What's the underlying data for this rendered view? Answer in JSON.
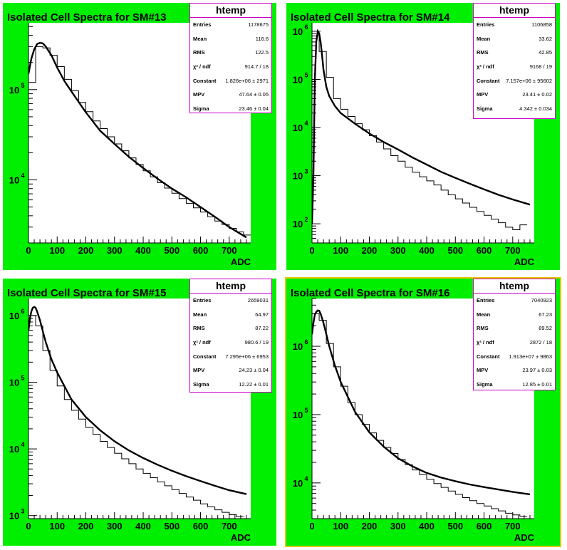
{
  "panels": [
    {
      "title": "Isolated Cell Spectra for SM#13",
      "stats": {
        "name": "htemp",
        "rows": [
          {
            "label": "Entries",
            "value": "1178675"
          },
          {
            "label": "Mean",
            "value": "116.6"
          },
          {
            "label": "RMS",
            "value": "122.5"
          },
          {
            "label": "χ² / ndf",
            "value": "914.7 / 18"
          },
          {
            "label": "Constant",
            "value": "1.826e+06 ± 2971"
          },
          {
            "label": "MPV",
            "value": "47.64 ± 0.05"
          },
          {
            "label": "Sigma",
            "value": "23.46 ± 0.04"
          }
        ]
      },
      "frame_color": "#00ee00",
      "border_color": ""
    },
    {
      "title": "Isolated Cell Spectra for SM#14",
      "stats": {
        "name": "htemp",
        "rows": [
          {
            "label": "Entries",
            "value": "1106858"
          },
          {
            "label": "Mean",
            "value": "33.62"
          },
          {
            "label": "RMS",
            "value": "42.85"
          },
          {
            "label": "χ² / ndf",
            "value": "9168 / 19"
          },
          {
            "label": "Constant",
            "value": "7.157e+06 ± 95602"
          },
          {
            "label": "MPV",
            "value": "23.41 ± 0.02"
          },
          {
            "label": "Sigma",
            "value": "4.342 ± 0.034"
          }
        ]
      },
      "frame_color": "#00ee00",
      "border_color": ""
    },
    {
      "title": "Isolated Cell Spectra for SM#15",
      "stats": {
        "name": "htemp",
        "rows": [
          {
            "label": "Entries",
            "value": "2659031"
          },
          {
            "label": "Mean",
            "value": "64.97"
          },
          {
            "label": "RMS",
            "value": "87.22"
          },
          {
            "label": "χ² / ndf",
            "value": "980.6 / 19"
          },
          {
            "label": "Constant",
            "value": "7.295e+06 ± 6953"
          },
          {
            "label": "MPV",
            "value": "24.23 ± 0.04"
          },
          {
            "label": "Sigma",
            "value": "12.22 ± 0.01"
          }
        ]
      },
      "frame_color": "#00ee00",
      "border_color": ""
    },
    {
      "title": "Isolated Cell Spectra for SM#16",
      "stats": {
        "name": "htemp",
        "rows": [
          {
            "label": "Entries",
            "value": "7040923"
          },
          {
            "label": "Mean",
            "value": "67.23"
          },
          {
            "label": "RMS",
            "value": "89.52"
          },
          {
            "label": "χ² / ndf",
            "value": "2872 / 18"
          },
          {
            "label": "Constant",
            "value": "1.913e+07 ± 9863"
          },
          {
            "label": "MPV",
            "value": "23.97 ± 0.03"
          },
          {
            "label": "Sigma",
            "value": "12.85 ± 0.01"
          }
        ]
      },
      "frame_color": "#00ee00",
      "border_color": "#e8c400"
    }
  ],
  "chart_data": [
    {
      "type": "bar",
      "title": "Isolated Cell Spectra for SM#13",
      "xlabel": "ADC",
      "ylabel": "",
      "xlim": [
        0,
        775
      ],
      "ylim": [
        2000,
        550000
      ],
      "yscale": "log",
      "xticks": [
        0,
        100,
        200,
        300,
        400,
        500,
        600,
        700
      ],
      "yticks": [
        {
          "base": "10",
          "exp": "4",
          "value": 10000
        },
        {
          "base": "10",
          "exp": "5",
          "value": 100000
        }
      ],
      "bin_width": 25,
      "histogram": [
        120000,
        300000,
        290000,
        240000,
        180000,
        130000,
        97000,
        72000,
        57000,
        45000,
        37000,
        30000,
        25000,
        21000,
        17500,
        14800,
        12600,
        10800,
        9300,
        8100,
        7100,
        6200,
        5500,
        4900,
        4400,
        3900,
        3500,
        3200,
        2900,
        2650,
        2450
      ],
      "fit": {
        "x": [
          0,
          10,
          20,
          30,
          40,
          50,
          60,
          80,
          100,
          125,
          150,
          200,
          250,
          300,
          350,
          400,
          450,
          500,
          550,
          600,
          650,
          700,
          760
        ],
        "y": [
          150000,
          220000,
          280000,
          320000,
          330000,
          325000,
          300000,
          240000,
          175000,
          125000,
          95000,
          56000,
          35000,
          25000,
          18000,
          13500,
          10300,
          8000,
          6400,
          5000,
          3900,
          3000,
          2300
        ]
      }
    },
    {
      "type": "bar",
      "title": "Isolated Cell Spectra for SM#14",
      "xlabel": "ADC",
      "ylabel": "",
      "xlim": [
        0,
        775
      ],
      "ylim": [
        40,
        1500000
      ],
      "yscale": "log",
      "xticks": [
        0,
        100,
        200,
        300,
        400,
        500,
        600,
        700
      ],
      "yticks": [
        {
          "base": "10",
          "exp": "2",
          "value": 100
        },
        {
          "base": "10",
          "exp": "3",
          "value": 1000
        },
        {
          "base": "10",
          "exp": "4",
          "value": 10000
        },
        {
          "base": "10",
          "exp": "5",
          "value": 100000
        },
        {
          "base": "10",
          "exp": "6",
          "value": 1000000
        }
      ],
      "bin_width": 25,
      "histogram": [
        800000,
        380000,
        110000,
        40000,
        24000,
        17000,
        12000,
        9000,
        6800,
        5000,
        3600,
        2600,
        2000,
        1500,
        1180,
        950,
        780,
        640,
        500,
        400,
        330,
        270,
        220,
        180,
        150,
        125,
        105,
        85,
        75,
        95
      ],
      "fit": {
        "x": [
          0,
          5,
          10,
          15,
          20,
          25,
          30,
          35,
          40,
          50,
          60,
          80,
          100,
          150,
          200,
          250,
          300,
          350,
          400,
          450,
          500,
          550,
          600,
          650,
          700,
          760
        ],
        "y": [
          100,
          1000,
          100000,
          600000,
          1000000,
          900000,
          600000,
          320000,
          160000,
          70000,
          45000,
          28000,
          20000,
          12000,
          7500,
          5000,
          3500,
          2400,
          1700,
          1200,
          900,
          680,
          520,
          400,
          320,
          250
        ]
      }
    },
    {
      "type": "bar",
      "title": "Isolated Cell Spectra for SM#15",
      "xlabel": "ADC",
      "ylabel": "",
      "xlim": [
        0,
        775
      ],
      "ylim": [
        900,
        1800000
      ],
      "yscale": "log",
      "xticks": [
        0,
        100,
        200,
        300,
        400,
        500,
        600,
        700
      ],
      "yticks": [
        {
          "base": "10",
          "exp": "3",
          "value": 1000
        },
        {
          "base": "10",
          "exp": "4",
          "value": 10000
        },
        {
          "base": "10",
          "exp": "5",
          "value": 100000
        },
        {
          "base": "10",
          "exp": "6",
          "value": 1000000
        }
      ],
      "bin_width": 25,
      "histogram": [
        1000000,
        700000,
        300000,
        150000,
        88000,
        55000,
        38000,
        28000,
        21000,
        16500,
        13000,
        10500,
        8600,
        7100,
        6000,
        5000,
        4300,
        3700,
        3200,
        2800,
        2450,
        2150,
        1900,
        1700,
        1500,
        1350,
        1220,
        1120,
        1030,
        960
      ],
      "fit": {
        "x": [
          0,
          5,
          10,
          15,
          20,
          25,
          30,
          40,
          50,
          60,
          80,
          100,
          150,
          200,
          250,
          300,
          350,
          400,
          450,
          500,
          550,
          600,
          650,
          700,
          760
        ],
        "y": [
          600000,
          900000,
          1150000,
          1300000,
          1350000,
          1300000,
          1150000,
          850000,
          580000,
          400000,
          220000,
          140000,
          55000,
          30000,
          19000,
          13000,
          9500,
          7300,
          5800,
          4700,
          3900,
          3300,
          2800,
          2400,
          2100
        ]
      }
    },
    {
      "type": "bar",
      "title": "Isolated Cell Spectra for SM#16",
      "xlabel": "ADC",
      "ylabel": "",
      "xlim": [
        0,
        775
      ],
      "ylim": [
        3000,
        5000000
      ],
      "yscale": "log",
      "xticks": [
        0,
        100,
        200,
        300,
        400,
        500,
        600,
        700
      ],
      "yticks": [
        {
          "base": "10",
          "exp": "4",
          "value": 10000
        },
        {
          "base": "10",
          "exp": "5",
          "value": 100000
        },
        {
          "base": "10",
          "exp": "6",
          "value": 1000000
        }
      ],
      "bin_width": 25,
      "histogram": [
        3000000,
        2400000,
        1100000,
        500000,
        260000,
        150000,
        100000,
        72000,
        54000,
        42000,
        33000,
        27000,
        22000,
        18500,
        15500,
        13200,
        11300,
        9800,
        8600,
        7600,
        6800,
        6100,
        5500,
        5000,
        4600,
        4200,
        3900,
        3600,
        3400,
        3250
      ],
      "fit": {
        "x": [
          0,
          5,
          10,
          15,
          20,
          25,
          30,
          40,
          50,
          60,
          80,
          100,
          150,
          200,
          250,
          300,
          350,
          400,
          450,
          500,
          550,
          600,
          650,
          700,
          760
        ],
        "y": [
          1500000,
          2200000,
          2900000,
          3200000,
          3350000,
          3300000,
          3000000,
          2200000,
          1500000,
          1000000,
          520000,
          300000,
          110000,
          55000,
          34000,
          23000,
          17500,
          14000,
          12000,
          10600,
          9500,
          8700,
          8000,
          7400,
          6800
        ]
      }
    }
  ]
}
